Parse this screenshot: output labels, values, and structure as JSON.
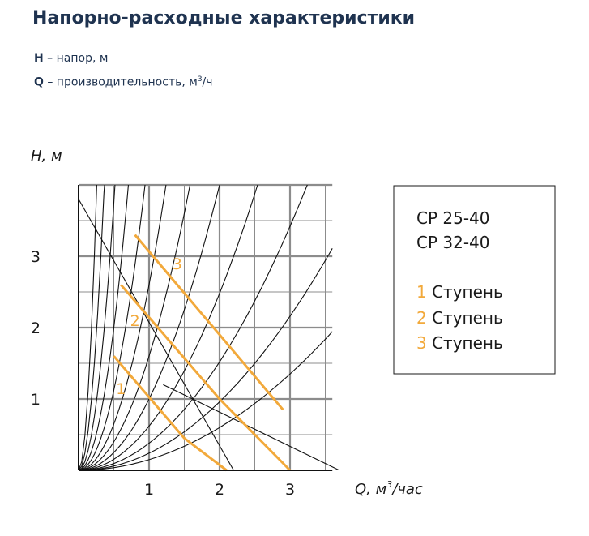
{
  "header": {
    "title": "Напорно-расходные характеристики",
    "legend": [
      {
        "symbol": "H",
        "text": " – напор, м"
      },
      {
        "symbol": "Q",
        "text": " – производительность, м",
        "sup": "3",
        "suffix": "/ч"
      }
    ]
  },
  "colors": {
    "title": "#1f3350",
    "curve": "#f2a93b",
    "grid": "#8c8c8c",
    "system_lines": "#111111"
  },
  "chart_data": {
    "type": "line",
    "ylabel": "H, м",
    "xlabel_prefix": "Q, м",
    "xlabel_sup": "3",
    "xlabel_suffix": "/час",
    "xlim": [
      0,
      3.6
    ],
    "ylim": [
      0,
      4
    ],
    "x_ticks": [
      "1",
      "2",
      "3"
    ],
    "y_ticks": [
      "1",
      "2",
      "3"
    ],
    "grid": true,
    "legend_box": {
      "position": "right",
      "models": [
        "CP 25-40",
        "CP 32-40"
      ],
      "stages": [
        {
          "num": "1",
          "text": " Ступень"
        },
        {
          "num": "2",
          "text": " Ступень"
        },
        {
          "num": "3",
          "text": " Ступень"
        }
      ]
    },
    "series": [
      {
        "label": "1",
        "points": [
          [
            0.5,
            1.6
          ],
          [
            1.5,
            0.45
          ],
          [
            2.1,
            0.0
          ]
        ],
        "label_at": [
          0.6,
          1.15
        ]
      },
      {
        "label": "2",
        "points": [
          [
            0.6,
            2.6
          ],
          [
            2.0,
            1.0
          ],
          [
            3.0,
            0.0
          ]
        ],
        "label_at": [
          0.8,
          2.1
        ]
      },
      {
        "label": "3",
        "points": [
          [
            0.8,
            3.3
          ],
          [
            2.9,
            0.85
          ]
        ],
        "label_at": [
          1.4,
          2.9
        ]
      }
    ],
    "system_curves_k": [
      60,
      30,
      15,
      8,
      4.5,
      2.6,
      1.6,
      1.0,
      0.62,
      0.38,
      0.24,
      0.15
    ],
    "descending_lines": [
      [
        [
          0,
          3.8
        ],
        [
          2.2,
          0.0
        ]
      ],
      [
        [
          1.2,
          1.2
        ],
        [
          3.7,
          0.0
        ]
      ]
    ]
  }
}
